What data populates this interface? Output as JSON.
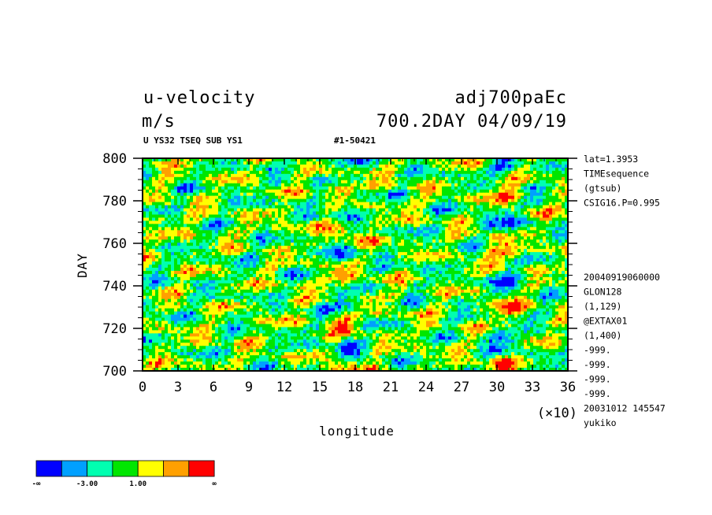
{
  "header": {
    "title": "u-velocity",
    "units": "m/s",
    "dataset": "adj700paEc",
    "time_info": "700.2DAY 04/09/19",
    "subtitle_left": "U YS32 TSEQ SUB YS1",
    "subtitle_right": "#1-50421"
  },
  "side_info_top": [
    "lat=1.3953",
    "TIMEsequence",
    "(gtsub)",
    "CSIG16.P=0.995"
  ],
  "side_info_bottom": [
    "20040919060000",
    "GLON128",
    "(1,129)",
    "@EXTAX01",
    "(1,400)",
    "-999.",
    "-999.",
    "-999.",
    "-999.",
    "20031012 145547",
    "yukiko"
  ],
  "colors": {
    "palette": [
      "#0000ff",
      "#00a0ff",
      "#00ffb0",
      "#00e600",
      "#ffff00",
      "#ffa000",
      "#ff0000"
    ]
  },
  "chart_data": {
    "type": "heatmap",
    "title": "u-velocity",
    "xlabel": "longitude",
    "ylabel": "DAY",
    "x_multiplier_label": "(×10)",
    "xlim": [
      0,
      36
    ],
    "ylim": [
      700,
      800
    ],
    "x_ticks": [
      0,
      3,
      6,
      9,
      12,
      15,
      18,
      21,
      24,
      27,
      30,
      33,
      36
    ],
    "y_ticks": [
      700,
      720,
      740,
      760,
      780,
      800
    ],
    "colorbar": {
      "labels": [
        "-∞",
        "-3.00",
        "1.00",
        "∞"
      ],
      "colors": [
        "#0000ff",
        "#00a0ff",
        "#00ffb0",
        "#00e600",
        "#ffff00",
        "#ffa000",
        "#ff0000"
      ]
    }
  }
}
